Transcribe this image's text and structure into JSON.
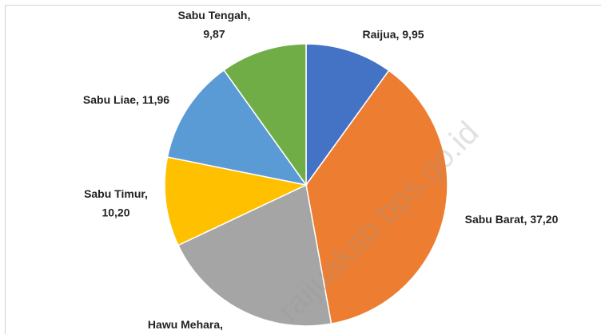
{
  "chart_data": {
    "type": "pie",
    "categories": [
      "Raijua",
      "Sabu Barat",
      "Hawu Mehara",
      "Sabu Timur",
      "Sabu Liae",
      "Sabu Tengah"
    ],
    "values": [
      9.95,
      37.2,
      20.82,
      10.2,
      11.96,
      9.87
    ],
    "value_labels": [
      "9,95",
      "37,20",
      null,
      "10,20",
      "11,96",
      "9,87"
    ],
    "label_separator": ",",
    "colors": [
      "#4472c4",
      "#ed7d31",
      "#a5a5a5",
      "#ffc000",
      "#5b9bd5",
      "#70ad47"
    ],
    "watermark": "raijuakab.bps.go.id"
  }
}
